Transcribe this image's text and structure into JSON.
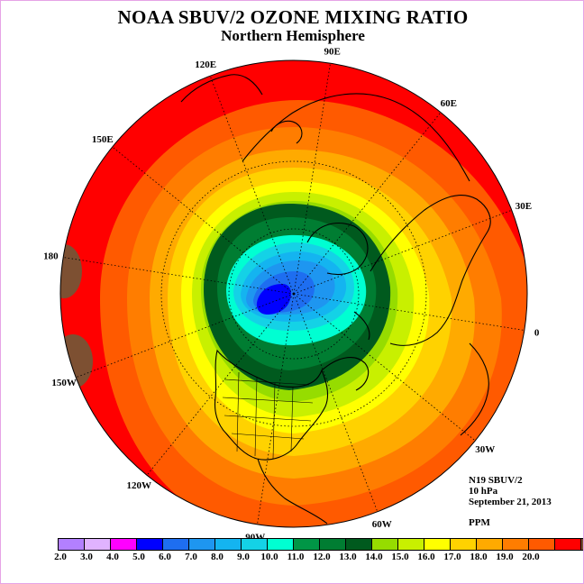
{
  "title": "NOAA SBUV/2 OZONE MIXING RATIO",
  "subtitle": "Northern Hemisphere",
  "info": {
    "satellite": "N19 SBUV/2",
    "level": "10 hPa",
    "date": "September 21, 2013",
    "units": "PPM"
  },
  "longitude_labels": [
    {
      "text": "90E",
      "angle": 90
    },
    {
      "text": "60E",
      "angle": 60
    },
    {
      "text": "30E",
      "angle": 30
    },
    {
      "text": "0",
      "angle": 0
    },
    {
      "text": "30W",
      "angle": -30
    },
    {
      "text": "60W",
      "angle": -60
    },
    {
      "text": "90W",
      "angle": -90
    },
    {
      "text": "120W",
      "angle": -120
    },
    {
      "text": "150W",
      "angle": -150
    },
    {
      "text": "180",
      "angle": 180
    },
    {
      "text": "150E",
      "angle": 150
    },
    {
      "text": "120E",
      "angle": 120
    }
  ],
  "colorbar": {
    "ticks": [
      "2.0",
      "3.0",
      "4.0",
      "5.0",
      "6.0",
      "7.0",
      "8.0",
      "9.0",
      "10.0",
      "11.0",
      "12.0",
      "13.0",
      "14.0",
      "15.0",
      "16.0",
      "17.0",
      "18.0",
      "19.0",
      "20.0"
    ],
    "colors": [
      "#b380ff",
      "#e0b3ff",
      "#ff00ff",
      "#0000ff",
      "#1e6ef0",
      "#1e96f0",
      "#14b4f0",
      "#14d2e6",
      "#00ffd2",
      "#009646",
      "#007d32",
      "#005a1e",
      "#96dc00",
      "#c8f000",
      "#ffff00",
      "#ffd200",
      "#ffaa00",
      "#ff7d00",
      "#ff5a00",
      "#ff0000",
      "#7d5032"
    ]
  },
  "map": {
    "field": "ozone mixing ratio",
    "projection": "north polar stereographic",
    "minimum_region_color": "#0000ff",
    "maximum_region_color": "#ff0000",
    "coastline_color": "#000000"
  }
}
